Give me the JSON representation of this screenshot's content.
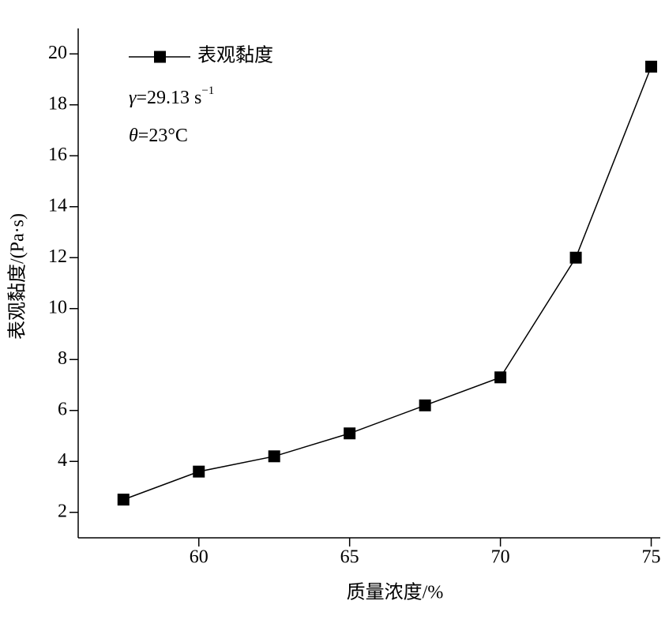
{
  "chart_data": {
    "type": "line",
    "x_label": "质量浓度/%",
    "y_label": "表观黏度/(Pa·s)",
    "x": [
      57.5,
      60,
      62.5,
      65,
      67.5,
      70,
      72.5,
      75
    ],
    "series": [
      {
        "name": "表观黏度",
        "color": "#000000",
        "values": [
          2.5,
          3.6,
          4.2,
          5.1,
          6.2,
          7.3,
          12.0,
          19.5
        ]
      }
    ],
    "xlim": [
      56,
      75.3
    ],
    "xticks": [
      60,
      65,
      70,
      75
    ],
    "ylim": [
      1,
      21
    ],
    "yticks": [
      2,
      4,
      6,
      8,
      10,
      12,
      14,
      16,
      18,
      20
    ],
    "annotations": [
      {
        "symbol": "γ",
        "text": "=29.13 s",
        "sup": "−1"
      },
      {
        "symbol": "θ",
        "text": "=23°C"
      }
    ],
    "legend": "top-left",
    "marker": "square"
  }
}
